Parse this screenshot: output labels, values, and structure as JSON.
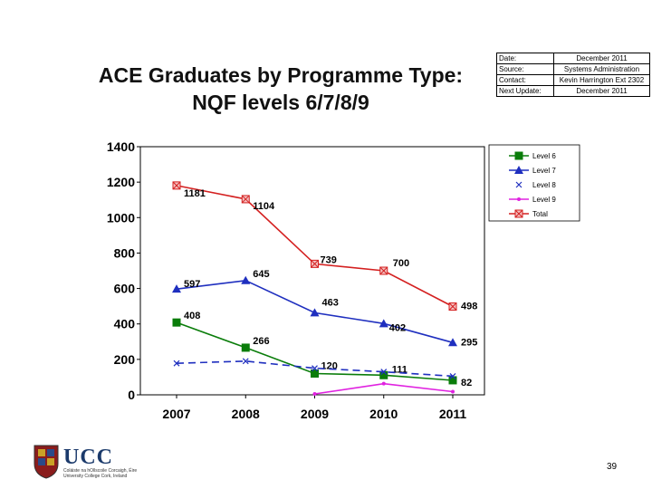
{
  "slide": {
    "title_line1": "ACE Graduates by Programme Type:",
    "title_line2": "NQF levels 6/7/8/9",
    "page_number": "39",
    "logo_text": "UCC",
    "logo_subtext": "Coláiste na hOllscoile Corcaigh, Éire University College Cork, Ireland"
  },
  "info_table": [
    {
      "label": "Date:",
      "value": "December 2011"
    },
    {
      "label": "Source:",
      "value": "Systems Administration"
    },
    {
      "label": "Contact:",
      "value": "Kevin Harrington Ext 2302"
    },
    {
      "label": "Next Update:",
      "value": "December 2011"
    }
  ],
  "chart_data": {
    "type": "line",
    "categories": [
      "2007",
      "2008",
      "2009",
      "2010",
      "2011"
    ],
    "ylim": [
      0,
      1400
    ],
    "yticks": [
      0,
      200,
      400,
      600,
      800,
      1000,
      1200,
      1400
    ],
    "grid": false,
    "legend_position": "top-right",
    "series": [
      {
        "name": "Level 6",
        "color": "#0a7d0a",
        "marker": "square",
        "dash": false,
        "values": [
          408,
          266,
          120,
          111,
          82
        ],
        "labels": [
          "408",
          "266",
          "120",
          "111",
          "82"
        ]
      },
      {
        "name": "Level 7",
        "color": "#1f2fbf",
        "marker": "triangle",
        "dash": false,
        "values": [
          597,
          645,
          463,
          402,
          295
        ],
        "labels": [
          "597",
          "645",
          "463",
          "402",
          "295"
        ]
      },
      {
        "name": "Level 8",
        "color": "#1f2fbf",
        "marker": "x",
        "dash": true,
        "values": [
          178,
          190,
          150,
          130,
          105
        ],
        "labels": [
          "",
          "",
          "",
          "",
          ""
        ]
      },
      {
        "name": "Level 9",
        "color": "#e022e0",
        "marker": "dot",
        "dash": false,
        "values": [
          null,
          null,
          5,
          63,
          18
        ],
        "labels": [
          "",
          "",
          "",
          "",
          ""
        ]
      },
      {
        "name": "Total",
        "color": "#d42020",
        "marker": "boxx",
        "dash": false,
        "values": [
          1181,
          1104,
          739,
          700,
          498
        ],
        "labels": [
          "1181",
          "1104",
          "739",
          "700",
          "498"
        ]
      }
    ]
  }
}
